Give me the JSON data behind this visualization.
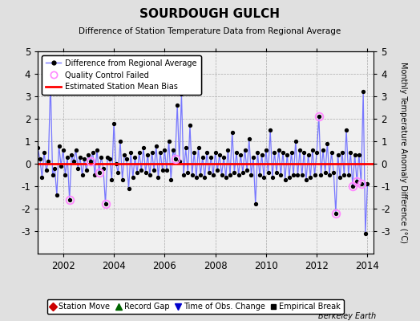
{
  "title": "SOURDOUGH GULCH",
  "subtitle": "Difference of Station Temperature Data from Regional Average",
  "ylabel": "Monthly Temperature Anomaly Difference (°C)",
  "xlabel_ticks": [
    2002,
    2004,
    2006,
    2008,
    2010,
    2012,
    2014
  ],
  "ylim": [
    -4,
    5
  ],
  "yticks": [
    -3,
    -2,
    -1,
    0,
    1,
    2,
    3,
    4,
    5
  ],
  "mean_bias": 0.0,
  "background_color": "#e0e0e0",
  "plot_bg_color": "#f0f0f0",
  "line_color": "#7777ff",
  "bias_color": "#ff0000",
  "marker_color": "#000000",
  "footer": "Berkeley Earth",
  "data": [
    [
      2001.0,
      0.7
    ],
    [
      2001.083,
      0.2
    ],
    [
      2001.167,
      -0.6
    ],
    [
      2001.25,
      0.5
    ],
    [
      2001.333,
      -0.3
    ],
    [
      2001.417,
      0.1
    ],
    [
      2001.5,
      3.7
    ],
    [
      2001.583,
      -0.5
    ],
    [
      2001.667,
      -0.2
    ],
    [
      2001.75,
      -1.4
    ],
    [
      2001.833,
      0.8
    ],
    [
      2001.917,
      -0.1
    ],
    [
      2002.0,
      0.6
    ],
    [
      2002.083,
      -0.5
    ],
    [
      2002.167,
      0.3
    ],
    [
      2002.25,
      -1.6
    ],
    [
      2002.333,
      0.4
    ],
    [
      2002.417,
      0.1
    ],
    [
      2002.5,
      0.6
    ],
    [
      2002.583,
      -0.2
    ],
    [
      2002.667,
      0.3
    ],
    [
      2002.75,
      -0.5
    ],
    [
      2002.833,
      0.2
    ],
    [
      2002.917,
      -0.3
    ],
    [
      2003.0,
      0.4
    ],
    [
      2003.083,
      0.1
    ],
    [
      2003.167,
      0.5
    ],
    [
      2003.25,
      -0.5
    ],
    [
      2003.333,
      0.6
    ],
    [
      2003.417,
      -0.4
    ],
    [
      2003.5,
      0.3
    ],
    [
      2003.583,
      -0.2
    ],
    [
      2003.667,
      -1.8
    ],
    [
      2003.75,
      0.3
    ],
    [
      2003.833,
      0.2
    ],
    [
      2003.917,
      -0.7
    ],
    [
      2004.0,
      1.8
    ],
    [
      2004.083,
      0.0
    ],
    [
      2004.167,
      -0.4
    ],
    [
      2004.25,
      1.0
    ],
    [
      2004.333,
      -0.7
    ],
    [
      2004.417,
      0.4
    ],
    [
      2004.5,
      0.2
    ],
    [
      2004.583,
      -1.1
    ],
    [
      2004.667,
      0.5
    ],
    [
      2004.75,
      -0.6
    ],
    [
      2004.833,
      0.3
    ],
    [
      2004.917,
      -0.4
    ],
    [
      2005.0,
      0.5
    ],
    [
      2005.083,
      -0.3
    ],
    [
      2005.167,
      0.7
    ],
    [
      2005.25,
      -0.4
    ],
    [
      2005.333,
      0.4
    ],
    [
      2005.417,
      -0.5
    ],
    [
      2005.5,
      0.5
    ],
    [
      2005.583,
      -0.3
    ],
    [
      2005.667,
      0.8
    ],
    [
      2005.75,
      -0.6
    ],
    [
      2005.833,
      0.5
    ],
    [
      2005.917,
      -0.3
    ],
    [
      2006.0,
      0.6
    ],
    [
      2006.083,
      -0.3
    ],
    [
      2006.167,
      1.0
    ],
    [
      2006.25,
      -0.7
    ],
    [
      2006.333,
      0.6
    ],
    [
      2006.417,
      0.2
    ],
    [
      2006.5,
      2.6
    ],
    [
      2006.583,
      0.1
    ],
    [
      2006.667,
      3.1
    ],
    [
      2006.75,
      -0.5
    ],
    [
      2006.833,
      0.7
    ],
    [
      2006.917,
      -0.4
    ],
    [
      2007.0,
      1.7
    ],
    [
      2007.083,
      -0.5
    ],
    [
      2007.167,
      0.5
    ],
    [
      2007.25,
      -0.6
    ],
    [
      2007.333,
      0.7
    ],
    [
      2007.417,
      -0.5
    ],
    [
      2007.5,
      0.3
    ],
    [
      2007.583,
      -0.6
    ],
    [
      2007.667,
      0.5
    ],
    [
      2007.75,
      -0.4
    ],
    [
      2007.833,
      0.3
    ],
    [
      2007.917,
      -0.5
    ],
    [
      2008.0,
      0.5
    ],
    [
      2008.083,
      -0.3
    ],
    [
      2008.167,
      0.4
    ],
    [
      2008.25,
      -0.5
    ],
    [
      2008.333,
      0.3
    ],
    [
      2008.417,
      -0.6
    ],
    [
      2008.5,
      0.6
    ],
    [
      2008.583,
      -0.5
    ],
    [
      2008.667,
      1.4
    ],
    [
      2008.75,
      -0.4
    ],
    [
      2008.833,
      0.5
    ],
    [
      2008.917,
      -0.5
    ],
    [
      2009.0,
      0.4
    ],
    [
      2009.083,
      -0.4
    ],
    [
      2009.167,
      0.6
    ],
    [
      2009.25,
      -0.3
    ],
    [
      2009.333,
      1.1
    ],
    [
      2009.417,
      -0.5
    ],
    [
      2009.5,
      0.3
    ],
    [
      2009.583,
      -1.8
    ],
    [
      2009.667,
      0.5
    ],
    [
      2009.75,
      -0.5
    ],
    [
      2009.833,
      0.4
    ],
    [
      2009.917,
      -0.6
    ],
    [
      2010.0,
      0.6
    ],
    [
      2010.083,
      -0.4
    ],
    [
      2010.167,
      1.5
    ],
    [
      2010.25,
      -0.6
    ],
    [
      2010.333,
      0.5
    ],
    [
      2010.417,
      -0.4
    ],
    [
      2010.5,
      0.6
    ],
    [
      2010.583,
      -0.5
    ],
    [
      2010.667,
      0.5
    ],
    [
      2010.75,
      -0.7
    ],
    [
      2010.833,
      0.4
    ],
    [
      2010.917,
      -0.6
    ],
    [
      2011.0,
      0.5
    ],
    [
      2011.083,
      -0.5
    ],
    [
      2011.167,
      1.0
    ],
    [
      2011.25,
      -0.5
    ],
    [
      2011.333,
      0.6
    ],
    [
      2011.417,
      -0.5
    ],
    [
      2011.5,
      0.5
    ],
    [
      2011.583,
      -0.7
    ],
    [
      2011.667,
      0.4
    ],
    [
      2011.75,
      -0.6
    ],
    [
      2011.833,
      0.6
    ],
    [
      2011.917,
      -0.5
    ],
    [
      2012.0,
      0.5
    ],
    [
      2012.083,
      2.1
    ],
    [
      2012.167,
      -0.5
    ],
    [
      2012.25,
      0.6
    ],
    [
      2012.333,
      -0.4
    ],
    [
      2012.417,
      0.9
    ],
    [
      2012.5,
      -0.5
    ],
    [
      2012.583,
      0.5
    ],
    [
      2012.667,
      -0.4
    ],
    [
      2012.75,
      -2.2
    ],
    [
      2012.833,
      0.4
    ],
    [
      2012.917,
      -0.6
    ],
    [
      2013.0,
      0.5
    ],
    [
      2013.083,
      -0.5
    ],
    [
      2013.167,
      1.5
    ],
    [
      2013.25,
      -0.5
    ],
    [
      2013.333,
      0.5
    ],
    [
      2013.417,
      -1.0
    ],
    [
      2013.5,
      0.4
    ],
    [
      2013.583,
      -0.8
    ],
    [
      2013.667,
      0.4
    ],
    [
      2013.75,
      -0.9
    ],
    [
      2013.833,
      3.2
    ],
    [
      2013.917,
      -3.1
    ],
    [
      2014.0,
      -0.9
    ]
  ],
  "qc_failed": [
    [
      2002.25,
      -1.6
    ],
    [
      2003.083,
      0.1
    ],
    [
      2003.417,
      -0.4
    ],
    [
      2003.667,
      -1.8
    ],
    [
      2006.417,
      0.2
    ],
    [
      2012.083,
      2.1
    ],
    [
      2012.75,
      -2.2
    ],
    [
      2013.417,
      -1.0
    ],
    [
      2013.583,
      -0.8
    ],
    [
      2013.75,
      -0.9
    ]
  ]
}
